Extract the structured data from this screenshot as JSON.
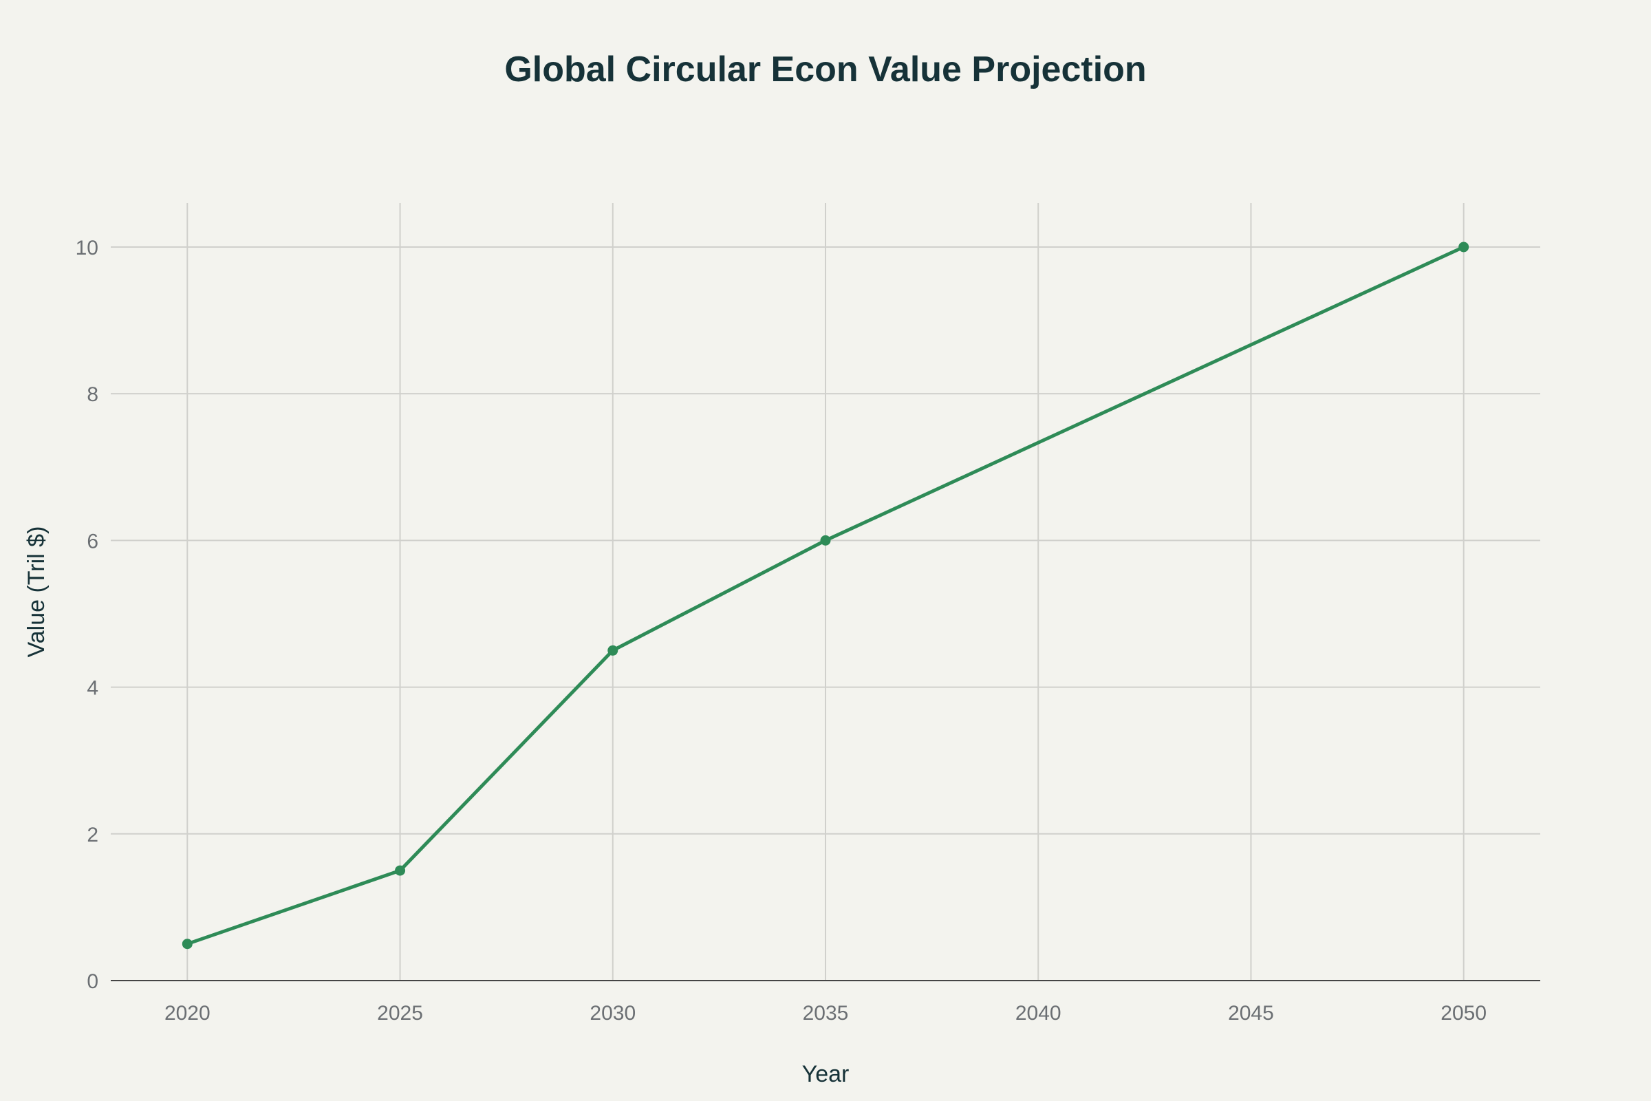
{
  "chart_data": {
    "type": "line",
    "title": "Global Circular Econ Value Projection",
    "xlabel": "Year",
    "ylabel": "Value (Tril $)",
    "x": [
      2020,
      2025,
      2030,
      2035,
      2050
    ],
    "series": [
      {
        "values": [
          0.5,
          1.5,
          4.5,
          6,
          10
        ],
        "color": "#2e8b57",
        "markers": true
      }
    ],
    "xlim": [
      2018.2,
      2051.8
    ],
    "ylim": [
      0,
      10.6
    ],
    "xticks": [
      "2020",
      "2025",
      "2030",
      "2035",
      "2040",
      "2045",
      "2050"
    ],
    "yticks": [
      "0",
      "2",
      "4",
      "6",
      "8",
      "10"
    ],
    "grid": true,
    "background": "#f3f3ee"
  }
}
